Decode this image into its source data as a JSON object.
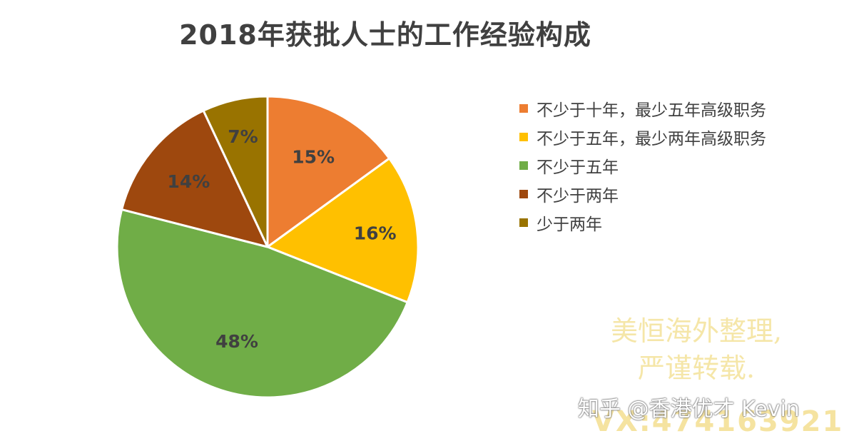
{
  "chart_data": {
    "type": "pie",
    "title": "2018年获批人士的工作经验构成",
    "categories": [
      "不少于十年，最少五年高级职务",
      "不少于五年，最少两年高级职务",
      "不少于五年",
      "不少于两年",
      "少于两年"
    ],
    "values": [
      15,
      16,
      48,
      14,
      7
    ],
    "labels": [
      "15%",
      "16%",
      "48%",
      "14%",
      "7%"
    ],
    "colors": [
      "#ed7d31",
      "#ffc000",
      "#70ad47",
      "#9e480e",
      "#997300"
    ],
    "legend_position": "right"
  },
  "watermark": {
    "line1": "美恒海外整理,",
    "line2": "严谨转载."
  },
  "footer": {
    "credit": "知乎 @香港优才 Kevin",
    "wechat": "VX:474163921"
  }
}
